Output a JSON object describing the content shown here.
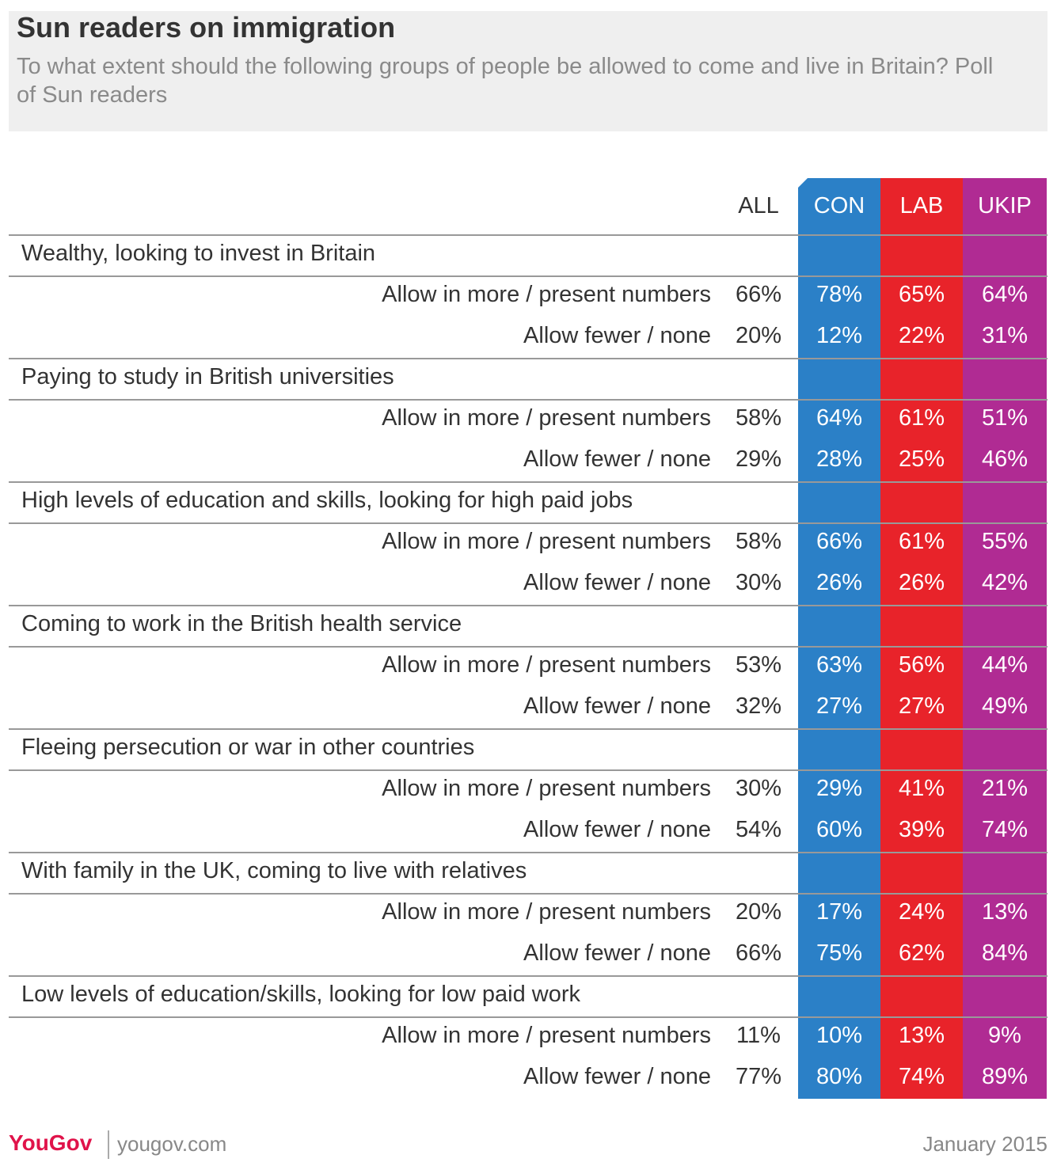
{
  "chart_data": {
    "type": "table",
    "title": "Sun readers on immigration",
    "subtitle": "To what extent should the following groups of people be allowed to come and live in Britain? Poll of Sun readers",
    "columns": [
      {
        "key": "all",
        "label": "ALL",
        "color": "#ffffff"
      },
      {
        "key": "con",
        "label": "CON",
        "color": "#2b80c7"
      },
      {
        "key": "lab",
        "label": "LAB",
        "color": "#e8232a"
      },
      {
        "key": "ukip",
        "label": "UKIP",
        "color": "#b02b93"
      }
    ],
    "groups": [
      {
        "label": "Wealthy, looking to invest in Britain",
        "rows": [
          {
            "label": "Allow in more / present numbers",
            "values": [
              "66%",
              "78%",
              "65%",
              "64%"
            ]
          },
          {
            "label": "Allow fewer / none",
            "values": [
              "20%",
              "12%",
              "22%",
              "31%"
            ]
          }
        ]
      },
      {
        "label": "Paying to study in British universities",
        "rows": [
          {
            "label": "Allow in more / present numbers",
            "values": [
              "58%",
              "64%",
              "61%",
              "51%"
            ]
          },
          {
            "label": "Allow fewer / none",
            "values": [
              "29%",
              "28%",
              "25%",
              "46%"
            ]
          }
        ]
      },
      {
        "label": "High levels of education and skills, looking for high paid jobs",
        "rows": [
          {
            "label": "Allow in more / present numbers",
            "values": [
              "58%",
              "66%",
              "61%",
              "55%"
            ]
          },
          {
            "label": "Allow fewer / none",
            "values": [
              "30%",
              "26%",
              "26%",
              "42%"
            ]
          }
        ]
      },
      {
        "label": "Coming to work in the British health service",
        "rows": [
          {
            "label": "Allow in more / present numbers",
            "values": [
              "53%",
              "63%",
              "56%",
              "44%"
            ]
          },
          {
            "label": "Allow fewer / none",
            "values": [
              "32%",
              "27%",
              "27%",
              "49%"
            ]
          }
        ]
      },
      {
        "label": "Fleeing persecution or war in other countries",
        "rows": [
          {
            "label": "Allow in more / present numbers",
            "values": [
              "30%",
              "29%",
              "41%",
              "21%"
            ]
          },
          {
            "label": "Allow fewer / none",
            "values": [
              "54%",
              "60%",
              "39%",
              "74%"
            ]
          }
        ]
      },
      {
        "label": "With family in the UK, coming to live with relatives",
        "rows": [
          {
            "label": "Allow in more / present numbers",
            "values": [
              "20%",
              "17%",
              "24%",
              "13%"
            ]
          },
          {
            "label": "Allow fewer / none",
            "values": [
              "66%",
              "75%",
              "62%",
              "84%"
            ]
          }
        ]
      },
      {
        "label": "Low levels of education/skills, looking for low paid work",
        "rows": [
          {
            "label": "Allow in more / present numbers",
            "values": [
              "11%",
              "10%",
              "13%",
              "9%"
            ]
          },
          {
            "label": "Allow fewer / none",
            "values": [
              "77%",
              "80%",
              "74%",
              "89%"
            ]
          }
        ]
      }
    ]
  },
  "footer": {
    "brand": "YouGov",
    "url": "yougov.com",
    "date": "January 2015"
  }
}
